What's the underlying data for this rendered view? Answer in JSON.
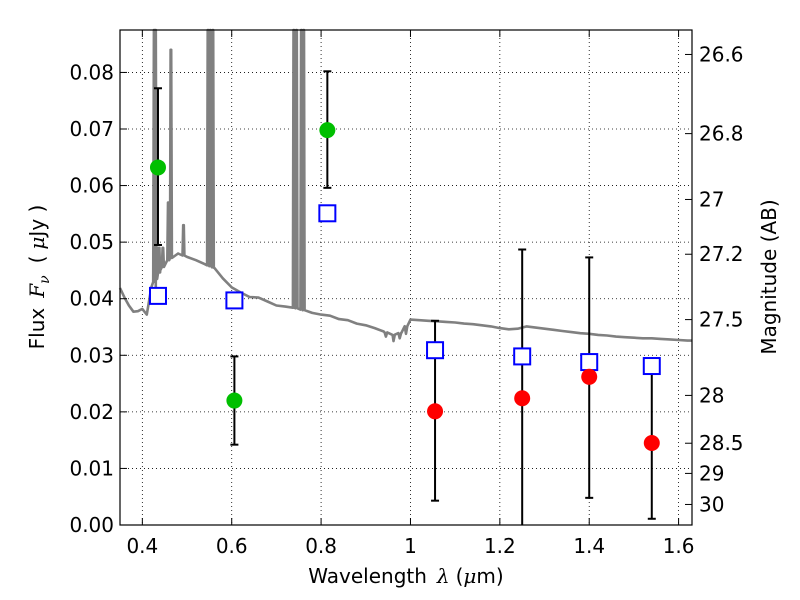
{
  "chart_data": {
    "type": "scatter",
    "title": "",
    "xlabel": {
      "text": "Wavelength",
      "symbol": "λ",
      "unit_prefix": "(",
      "mu": "μ",
      "unit": "m)"
    },
    "ylabel": {
      "text": "Flux",
      "symbol": "F",
      "subscript": "ν",
      "unit_open": "(",
      "mu": "μ",
      "unit": "Jy )"
    },
    "ylabel_right": "Magnitude (AB)",
    "xlim": [
      0.35,
      1.63
    ],
    "ylim": [
      0.0,
      0.0875
    ],
    "grid": true,
    "x_ticks": [
      {
        "value": 0.4,
        "label": "0.4"
      },
      {
        "value": 0.6,
        "label": "0.6"
      },
      {
        "value": 0.8,
        "label": "0.8"
      },
      {
        "value": 1.0,
        "label": "1"
      },
      {
        "value": 1.2,
        "label": "1.2"
      },
      {
        "value": 1.4,
        "label": "1.4"
      },
      {
        "value": 1.6,
        "label": "1.6"
      }
    ],
    "y_ticks": [
      {
        "value": 0.0,
        "label": "0.00"
      },
      {
        "value": 0.01,
        "label": "0.01"
      },
      {
        "value": 0.02,
        "label": "0.02"
      },
      {
        "value": 0.03,
        "label": "0.03"
      },
      {
        "value": 0.04,
        "label": "0.04"
      },
      {
        "value": 0.05,
        "label": "0.05"
      },
      {
        "value": 0.06,
        "label": "0.06"
      },
      {
        "value": 0.07,
        "label": "0.07"
      },
      {
        "value": 0.08,
        "label": "0.08"
      }
    ],
    "right_ticks": [
      {
        "mag": 26.6,
        "label": "26.6"
      },
      {
        "mag": 26.8,
        "label": "26.8"
      },
      {
        "mag": 27.0,
        "label": "27"
      },
      {
        "mag": 27.2,
        "label": "27.2"
      },
      {
        "mag": 27.5,
        "label": "27.5"
      },
      {
        "mag": 28.0,
        "label": "28"
      },
      {
        "mag": 28.5,
        "label": "28.5"
      },
      {
        "mag": 29.0,
        "label": "29"
      },
      {
        "mag": 30.0,
        "label": "30"
      }
    ],
    "colors": {
      "spectrum": "#808080",
      "green": "#00bf00",
      "red": "#ff0000",
      "model": "#0000ff",
      "errorbar": "#000000"
    },
    "model_photometry": [
      {
        "x": 0.435,
        "y": 0.0405
      },
      {
        "x": 0.606,
        "y": 0.0397
      },
      {
        "x": 0.814,
        "y": 0.0551
      },
      {
        "x": 1.055,
        "y": 0.0309
      },
      {
        "x": 1.25,
        "y": 0.0298
      },
      {
        "x": 1.4,
        "y": 0.0288
      },
      {
        "x": 1.54,
        "y": 0.0281
      }
    ],
    "observed_photometry": [
      {
        "x": 0.435,
        "y": 0.0632,
        "yerr_low": 0.0495,
        "yerr_high": 0.0772,
        "color": "green"
      },
      {
        "x": 0.606,
        "y": 0.022,
        "yerr_low": 0.0142,
        "yerr_high": 0.0298,
        "color": "green"
      },
      {
        "x": 0.814,
        "y": 0.0698,
        "yerr_low": 0.0596,
        "yerr_high": 0.0802,
        "color": "green"
      },
      {
        "x": 1.055,
        "y": 0.0201,
        "yerr_low": 0.0043,
        "yerr_high": 0.0361,
        "color": "red"
      },
      {
        "x": 1.25,
        "y": 0.0224,
        "yerr_low": -0.004,
        "yerr_high": 0.0487,
        "color": "red"
      },
      {
        "x": 1.4,
        "y": 0.0262,
        "yerr_low": 0.0048,
        "yerr_high": 0.0473,
        "color": "red"
      },
      {
        "x": 1.54,
        "y": 0.0145,
        "yerr_low": 0.0011,
        "yerr_high": 0.0279,
        "color": "red"
      }
    ],
    "spectrum": {
      "continuum": [
        [
          0.35,
          0.0419
        ],
        [
          0.36,
          0.0402
        ],
        [
          0.37,
          0.0388
        ],
        [
          0.38,
          0.0377
        ],
        [
          0.39,
          0.0378
        ],
        [
          0.4,
          0.0382
        ],
        [
          0.41,
          0.0372
        ],
        [
          0.42,
          0.042
        ],
        [
          0.44,
          0.045
        ],
        [
          0.46,
          0.047
        ],
        [
          0.48,
          0.048
        ],
        [
          0.5,
          0.0474
        ],
        [
          0.52,
          0.0468
        ],
        [
          0.54,
          0.0461
        ],
        [
          0.56,
          0.0455
        ],
        [
          0.58,
          0.0436
        ],
        [
          0.6,
          0.042
        ],
        [
          0.62,
          0.0411
        ],
        [
          0.64,
          0.0403
        ],
        [
          0.66,
          0.0402
        ],
        [
          0.68,
          0.0395
        ],
        [
          0.7,
          0.0388
        ],
        [
          0.72,
          0.0386
        ],
        [
          0.74,
          0.0384
        ],
        [
          0.76,
          0.038
        ],
        [
          0.78,
          0.0375
        ],
        [
          0.8,
          0.0372
        ],
        [
          0.82,
          0.037
        ],
        [
          0.84,
          0.0364
        ],
        [
          0.86,
          0.0362
        ],
        [
          0.88,
          0.0356
        ],
        [
          0.9,
          0.0353
        ],
        [
          0.92,
          0.0348
        ],
        [
          0.94,
          0.0342
        ],
        [
          0.96,
          0.0336
        ],
        [
          0.98,
          0.034
        ],
        [
          1.0,
          0.0363
        ],
        [
          1.02,
          0.0362
        ],
        [
          1.04,
          0.0361
        ],
        [
          1.06,
          0.036
        ],
        [
          1.08,
          0.0359
        ],
        [
          1.1,
          0.0358
        ],
        [
          1.12,
          0.0356
        ],
        [
          1.14,
          0.0355
        ],
        [
          1.16,
          0.0353
        ],
        [
          1.18,
          0.0351
        ],
        [
          1.2,
          0.0348
        ],
        [
          1.22,
          0.0346
        ],
        [
          1.24,
          0.0347
        ],
        [
          1.26,
          0.0351
        ],
        [
          1.28,
          0.0349
        ],
        [
          1.3,
          0.0347
        ],
        [
          1.32,
          0.0345
        ],
        [
          1.34,
          0.0343
        ],
        [
          1.36,
          0.0341
        ],
        [
          1.38,
          0.0339
        ],
        [
          1.4,
          0.0338
        ],
        [
          1.42,
          0.0336
        ],
        [
          1.44,
          0.0335
        ],
        [
          1.46,
          0.0333
        ],
        [
          1.48,
          0.0332
        ],
        [
          1.5,
          0.0331
        ],
        [
          1.52,
          0.033
        ],
        [
          1.54,
          0.033
        ],
        [
          1.56,
          0.0329
        ],
        [
          1.58,
          0.0328
        ],
        [
          1.6,
          0.0327
        ],
        [
          1.62,
          0.0326
        ],
        [
          1.63,
          0.0326
        ]
      ],
      "emission_lines": [
        {
          "x": 0.4265,
          "peak": 0.0875
        },
        {
          "x": 0.4295,
          "peak": 0.0875
        },
        {
          "x": 0.4375,
          "peak": 0.049
        },
        {
          "x": 0.446,
          "peak": 0.049
        },
        {
          "x": 0.458,
          "peak": 0.057
        },
        {
          "x": 0.464,
          "peak": 0.084
        },
        {
          "x": 0.492,
          "peak": 0.053
        },
        {
          "x": 0.547,
          "peak": 0.0875
        },
        {
          "x": 0.552,
          "peak": 0.0875
        },
        {
          "x": 0.558,
          "peak": 0.0875
        },
        {
          "x": 0.739,
          "peak": 0.0875
        },
        {
          "x": 0.745,
          "peak": 0.0875
        },
        {
          "x": 0.756,
          "peak": 0.0875
        },
        {
          "x": 0.761,
          "peak": 0.0875
        }
      ],
      "absorption_dips": [
        {
          "x": 0.43,
          "trough": 0.0405
        },
        {
          "x": 0.945,
          "trough": 0.0333
        },
        {
          "x": 0.962,
          "trough": 0.0325
        },
        {
          "x": 0.976,
          "trough": 0.033
        },
        {
          "x": 0.99,
          "trough": 0.0338
        }
      ]
    }
  }
}
